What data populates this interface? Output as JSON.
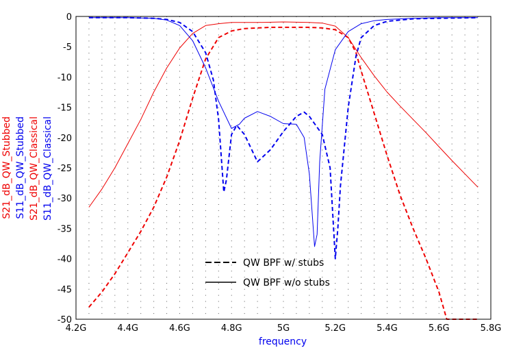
{
  "chart_data": {
    "type": "line",
    "xlabel": "frequency",
    "xlabel_color": "#0000ee",
    "xlim": [
      4.2,
      5.8
    ],
    "ylim": [
      -50,
      0
    ],
    "x_ticks": [
      {
        "value": 4.2,
        "label": "4.2G"
      },
      {
        "value": 4.4,
        "label": "4.4G"
      },
      {
        "value": 4.6,
        "label": "4.6G"
      },
      {
        "value": 4.8,
        "label": "4.8G"
      },
      {
        "value": 5.0,
        "label": "5G"
      },
      {
        "value": 5.2,
        "label": "5.2G"
      },
      {
        "value": 5.4,
        "label": "5.4G"
      },
      {
        "value": 5.6,
        "label": "5.6G"
      },
      {
        "value": 5.8,
        "label": "5.8G"
      }
    ],
    "y_ticks": [
      {
        "value": 0,
        "label": "0"
      },
      {
        "value": -5,
        "label": "-5"
      },
      {
        "value": -10,
        "label": "-10"
      },
      {
        "value": -15,
        "label": "-15"
      },
      {
        "value": -20,
        "label": "-20"
      },
      {
        "value": -25,
        "label": "-25"
      },
      {
        "value": -30,
        "label": "-30"
      },
      {
        "value": -35,
        "label": "-35"
      },
      {
        "value": -40,
        "label": "-40"
      },
      {
        "value": -45,
        "label": "-45"
      },
      {
        "value": -50,
        "label": "-50"
      }
    ],
    "grid": "dotted",
    "legend_position": "bottom-center",
    "ylabels": [
      {
        "text": "S21_dB_QW_Stubbed",
        "color": "#ee0000"
      },
      {
        "text": "S11_dB_QW_Stubbed",
        "color": "#0000ee"
      },
      {
        "text": "S21_dB_QW_Classical",
        "color": "#ee0000"
      },
      {
        "text": "S11_dB_QW_Classical",
        "color": "#0000ee"
      }
    ],
    "legend": [
      {
        "label": "QW BPF w/ stubs",
        "style": "dashed"
      },
      {
        "label": "QW BPF w/o stubs",
        "style": "solid"
      }
    ],
    "series": [
      {
        "name": "S21_dB_QW_Stubbed",
        "color": "#ee0000",
        "style": "dashed",
        "x": [
          4.25,
          4.3,
          4.35,
          4.4,
          4.45,
          4.5,
          4.55,
          4.6,
          4.65,
          4.7,
          4.75,
          4.8,
          4.85,
          4.9,
          4.95,
          5.0,
          5.05,
          5.1,
          5.15,
          5.2,
          5.25,
          5.28,
          5.3,
          5.35,
          5.4,
          5.45,
          5.5,
          5.55,
          5.6,
          5.63,
          5.65,
          5.7,
          5.75
        ],
        "y": [
          -48,
          -45.5,
          -42.5,
          -39,
          -35.5,
          -31.5,
          -26.5,
          -20.5,
          -13.5,
          -7,
          -3.5,
          -2.4,
          -2.0,
          -1.9,
          -1.8,
          -1.8,
          -1.8,
          -1.8,
          -1.9,
          -2.2,
          -3.5,
          -6,
          -9,
          -16,
          -23,
          -29.5,
          -35,
          -40,
          -45.5,
          -50,
          -50,
          -50,
          -50
        ]
      },
      {
        "name": "S11_dB_QW_Stubbed",
        "color": "#0000ee",
        "style": "dashed",
        "x": [
          4.25,
          4.4,
          4.5,
          4.55,
          4.6,
          4.65,
          4.7,
          4.73,
          4.75,
          4.77,
          4.78,
          4.8,
          4.82,
          4.85,
          4.9,
          4.95,
          5.0,
          5.05,
          5.08,
          5.1,
          5.15,
          5.18,
          5.2,
          5.21,
          5.22,
          5.25,
          5.28,
          5.3,
          5.35,
          5.4,
          5.5,
          5.6,
          5.75
        ],
        "y": [
          -0.2,
          -0.2,
          -0.3,
          -0.5,
          -1.0,
          -2.5,
          -6,
          -10.5,
          -17,
          -29,
          -27,
          -19.5,
          -18,
          -19.5,
          -24,
          -22,
          -19,
          -16.5,
          -15.8,
          -16.5,
          -19.5,
          -25,
          -40,
          -35,
          -28,
          -15,
          -6.5,
          -3.5,
          -1.5,
          -0.8,
          -0.4,
          -0.3,
          -0.2
        ]
      },
      {
        "name": "S21_dB_QW_Classical",
        "color": "#ee0000",
        "style": "solid",
        "x": [
          4.25,
          4.3,
          4.35,
          4.4,
          4.45,
          4.5,
          4.55,
          4.6,
          4.65,
          4.7,
          4.75,
          4.8,
          4.85,
          4.9,
          5.0,
          5.1,
          5.15,
          5.2,
          5.25,
          5.3,
          5.35,
          5.4,
          5.45,
          5.5,
          5.55,
          5.6,
          5.65,
          5.7,
          5.75
        ],
        "y": [
          -31.5,
          -28.5,
          -25,
          -21,
          -17,
          -12.5,
          -8.5,
          -5.2,
          -2.8,
          -1.5,
          -1.2,
          -1.0,
          -1.0,
          -1.0,
          -0.9,
          -1.0,
          -1.1,
          -1.6,
          -3.5,
          -6.8,
          -9.8,
          -12.5,
          -14.8,
          -17,
          -19.2,
          -21.5,
          -23.8,
          -26,
          -28.2
        ]
      },
      {
        "name": "S11_dB_QW_Classical",
        "color": "#0000ee",
        "style": "solid",
        "x": [
          4.25,
          4.4,
          4.5,
          4.55,
          4.6,
          4.65,
          4.7,
          4.75,
          4.8,
          4.83,
          4.85,
          4.9,
          4.95,
          5.0,
          5.05,
          5.08,
          5.1,
          5.12,
          5.13,
          5.14,
          5.16,
          5.2,
          5.25,
          5.3,
          5.35,
          5.4,
          5.5,
          5.6,
          5.75
        ],
        "y": [
          -0.2,
          -0.2,
          -0.3,
          -0.6,
          -1.5,
          -4.0,
          -8.5,
          -14,
          -18.5,
          -17.8,
          -16.8,
          -15.7,
          -16.5,
          -17.7,
          -17.8,
          -20,
          -26,
          -38,
          -36,
          -24,
          -12,
          -5.5,
          -2.5,
          -1.2,
          -0.7,
          -0.5,
          -0.3,
          -0.2,
          -0.2
        ]
      }
    ]
  }
}
